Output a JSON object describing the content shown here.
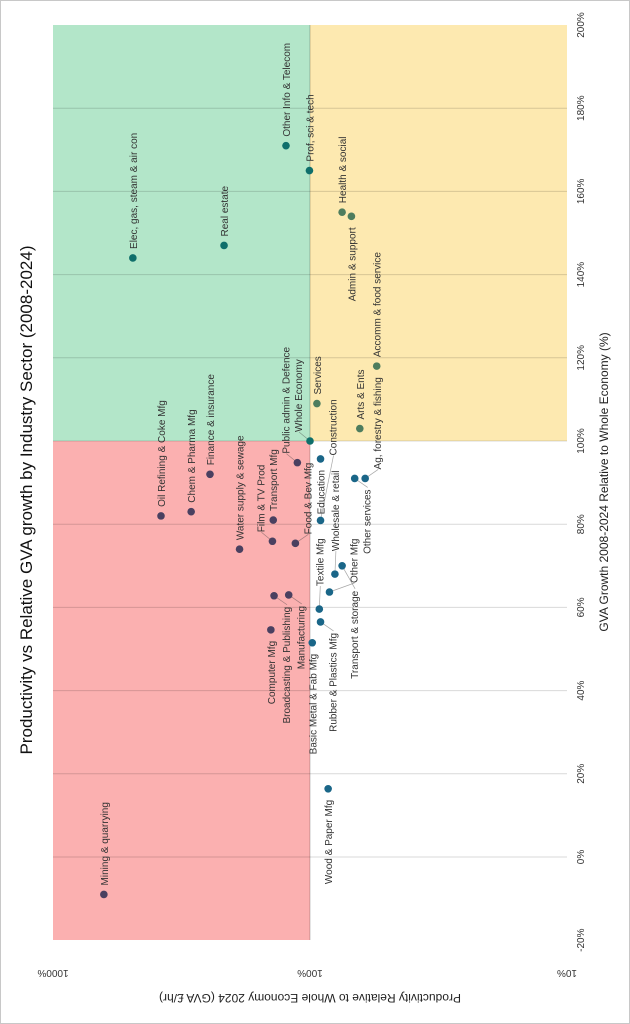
{
  "chart_data": {
    "type": "scatter",
    "title": "Productivity vs Relative GVA growth by Industry Sector (2008-2024)",
    "xlabel": "GVA Growth 2008-2024 Relative to Whole Economy (%)",
    "ylabel": "Productivity Relative to Whole Economy 2024 (GVA £/hr)",
    "xlim": [
      -20,
      200
    ],
    "ylim": [
      10,
      1000
    ],
    "y_scale": "log",
    "orientation": "rotated 90° counter-clockwise",
    "x_ticks": [
      "-20%",
      "0%",
      "20%",
      "40%",
      "60%",
      "80%",
      "100%",
      "120%",
      "140%",
      "160%",
      "180%",
      "200%"
    ],
    "x_tick_values": [
      -20,
      0,
      20,
      40,
      60,
      80,
      100,
      120,
      140,
      160,
      180,
      200
    ],
    "y_ticks": [
      "10%",
      "100%",
      "1000%"
    ],
    "y_tick_values": [
      10,
      100,
      1000
    ],
    "grid": true,
    "quadrant_colors": {
      "high_prod_high_growth": "#b3e6c9",
      "low_prod_high_growth": "#fde9b0",
      "high_prod_low_growth": "#fbb0b0",
      "low_prod_low_growth": "#ffffff"
    },
    "point_colors": {
      "high_prod_high_growth": "#0f6f6b",
      "low_prod_high_growth": "#4e7d5e",
      "high_prod_low_growth": "#4a4060",
      "low_prod_low_growth": "#1a6688"
    },
    "points": [
      {
        "label": "Mining & quarrying",
        "x": -9,
        "y": 634
      },
      {
        "label": "Oil Refining & Coke Mfg",
        "x": 82,
        "y": 380
      },
      {
        "label": "Chem & Pharma Mfg",
        "x": 83,
        "y": 290
      },
      {
        "label": "Finance & insurance",
        "x": 92,
        "y": 245
      },
      {
        "label": "Elec, gas, steam & air con",
        "x": 144,
        "y": 489
      },
      {
        "label": "Real estate",
        "x": 147,
        "y": 216
      },
      {
        "label": "Other Info & Telecom",
        "x": 171,
        "y": 124
      },
      {
        "label": "Prof, sci & tech",
        "x": 165,
        "y": 100.5
      },
      {
        "label": "Health & social",
        "x": 155,
        "y": 75
      },
      {
        "label": "Admin & support",
        "x": 154,
        "y": 69
      },
      {
        "label": "Accomm & food service",
        "x": 118,
        "y": 55
      },
      {
        "label": "Arts & Ents",
        "x": 103,
        "y": 64
      },
      {
        "label": "Whole Economy",
        "x": 100,
        "y": 100
      },
      {
        "label": "Services",
        "x": 109,
        "y": 94
      },
      {
        "label": "Education",
        "x": 95.7,
        "y": 91
      },
      {
        "label": "Public admin & Defence",
        "x": 94.8,
        "y": 112
      },
      {
        "label": "Water supply & sewage",
        "x": 74,
        "y": 188
      },
      {
        "label": "Transport Mfg",
        "x": 81,
        "y": 139
      },
      {
        "label": "Film & TV Prod",
        "x": 75.9,
        "y": 140
      },
      {
        "label": "Food & Bev Mfg",
        "x": 75.4,
        "y": 114
      },
      {
        "label": "Broadcasting & Publishing",
        "x": 62.8,
        "y": 138
      },
      {
        "label": "Manufacturing",
        "x": 63,
        "y": 121
      },
      {
        "label": "Computer Mfg",
        "x": 54.6,
        "y": 142
      },
      {
        "label": "Basic Metal & Fab Mfg",
        "x": 51.5,
        "y": 98
      },
      {
        "label": "Rubber & Plastics Mfg",
        "x": 56.5,
        "y": 91
      },
      {
        "label": "Textile Mfg",
        "x": 59.6,
        "y": 92
      },
      {
        "label": "Other Mfg",
        "x": 63.7,
        "y": 84
      },
      {
        "label": "Wholesale & retail",
        "x": 68,
        "y": 80
      },
      {
        "label": "Transport & storage",
        "x": 70,
        "y": 75
      },
      {
        "label": "Construction",
        "x": 80.9,
        "y": 91
      },
      {
        "label": "Other services",
        "x": 91,
        "y": 67
      },
      {
        "label": "Ag, forestry & fishing",
        "x": 91,
        "y": 61
      },
      {
        "label": "Wood & Paper Mfg",
        "x": 16.4,
        "y": 85
      }
    ]
  }
}
